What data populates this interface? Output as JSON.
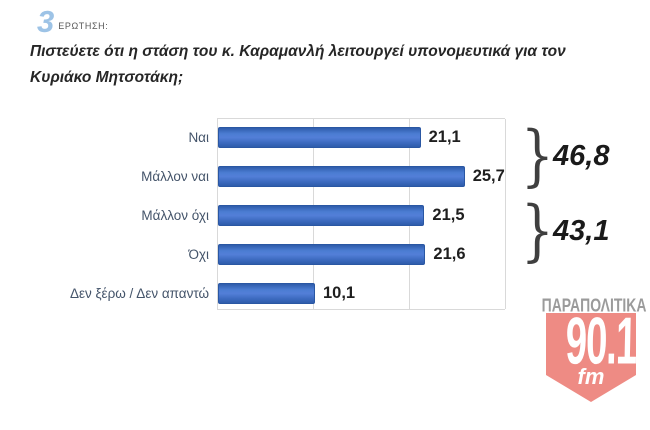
{
  "header": {
    "question_number": "3",
    "question_label": "ΕΡΩΤΗΣΗ:"
  },
  "question_text": "Πιστεύετε ότι η στάση του κ. Καραμανλή λειτουργεί υπονομευτικά για τον Κυριάκο Μητσοτάκη;",
  "chart_data": {
    "type": "bar",
    "orientation": "horizontal",
    "title": "",
    "categories": [
      "Ναι",
      "Μάλλον ναι",
      "Μάλλον όχι",
      "Όχι",
      "Δεν ξέρω / Δεν απαντώ"
    ],
    "values": [
      21.1,
      25.7,
      21.5,
      21.6,
      10.1
    ],
    "value_labels": [
      "21,1",
      "25,7",
      "21,5",
      "21,6",
      "10,1"
    ],
    "xlim": [
      0,
      30
    ],
    "gridline_values": [
      0,
      10,
      20,
      30
    ],
    "grid": true,
    "legend": false,
    "bar_color": "#4472c4",
    "groups": [
      {
        "label": "46,8",
        "sum_of": [
          "Ναι",
          "Μάλλον ναι"
        ]
      },
      {
        "label": "43,1",
        "sum_of": [
          "Μάλλον όχι",
          "Όχι"
        ]
      }
    ]
  },
  "logo": {
    "brand": "ΠΑΡΑΠΟΛΙΤΙΚΑ",
    "frequency": "90.1",
    "band": "fm",
    "badge_color": "#ee8b84",
    "brand_color": "#9b9b9b"
  }
}
